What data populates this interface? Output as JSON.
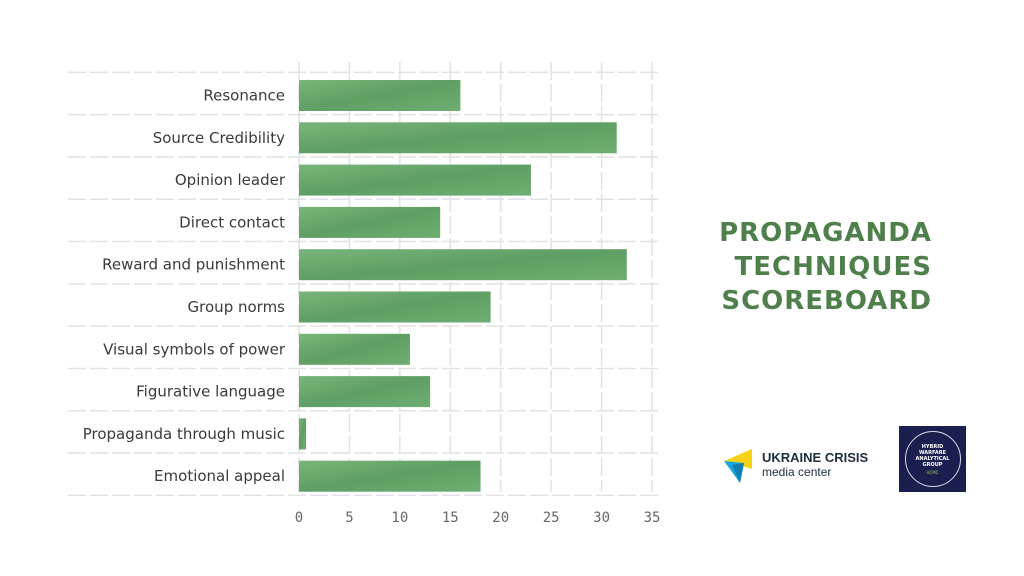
{
  "title_lines": [
    "PROPAGANDA",
    "TECHNIQUES",
    "SCOREBOARD"
  ],
  "colors": {
    "bar": "#6aa86e",
    "bar_dark": "#4e8b56",
    "title": "#4f7f4a",
    "logo_yellow": "#f7d117",
    "logo_blue": "#1aa7e0",
    "hwag_bg": "#1b1f4f"
  },
  "logos": {
    "ucmc_name": "UKRAINE CRISIS",
    "ucmc_sub": "media center",
    "hwag_lines": [
      "HYBRID",
      "WARFARE",
      "ANALYTICAL",
      "GROUP"
    ],
    "hwag_sub": "UCMC"
  },
  "chart_data": {
    "type": "bar",
    "orientation": "horizontal",
    "categories": [
      "Resonance",
      "Source Credibility",
      "Opinion leader",
      "Direct contact",
      "Reward and punishment",
      "Group norms",
      "Visual symbols of power",
      "Figurative language",
      "Propaganda through music",
      "Emotional appeal"
    ],
    "values": [
      16,
      31.5,
      23,
      14,
      32.5,
      19,
      11,
      13,
      0.7,
      18
    ],
    "xlim": [
      0,
      35
    ],
    "xticks": [
      0,
      5,
      10,
      15,
      20,
      25,
      30,
      35
    ],
    "grid": true
  }
}
